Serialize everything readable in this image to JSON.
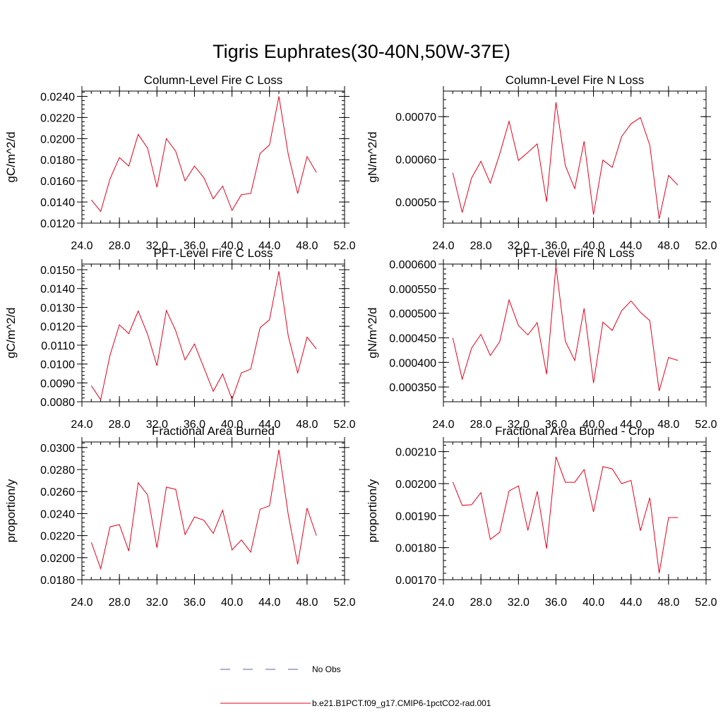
{
  "title": "Tigris Euphrates(30-40N,50W-37E)",
  "line_color": "#e8001c",
  "obs_color": "#5b5fa8",
  "legend": {
    "obs_label": "No Obs",
    "model_label": "b.e21.B1PCT.f09_g17.CMIP6-1pctCO2-rad.001"
  },
  "chart_data": [
    {
      "type": "line",
      "title": "Column-Level Fire C Loss",
      "ylabel": "gC/m^2/d",
      "xlim": [
        24,
        52
      ],
      "ylim": [
        0.012,
        0.0245
      ],
      "xticks": [
        24,
        28,
        32,
        36,
        40,
        44,
        48,
        52
      ],
      "xtick_labels": [
        "24.0",
        "28.0",
        "32.0",
        "36.0",
        "40.0",
        "44.0",
        "48.0",
        "52.0"
      ],
      "yticks": [
        0.012,
        0.014,
        0.016,
        0.018,
        0.02,
        0.022,
        0.024
      ],
      "ytick_labels": [
        "0.0120",
        "0.0140",
        "0.0160",
        "0.0180",
        "0.0200",
        "0.0220",
        "0.0240"
      ],
      "x": [
        25,
        26,
        27,
        28,
        29,
        30,
        31,
        32,
        33,
        34,
        35,
        36,
        37,
        38,
        39,
        40,
        41,
        42,
        43,
        44,
        45,
        46,
        47,
        48,
        49
      ],
      "series": [
        {
          "values": [
            0.0142,
            0.0131,
            0.0162,
            0.0182,
            0.0174,
            0.0204,
            0.0191,
            0.0154,
            0.02,
            0.0188,
            0.016,
            0.0174,
            0.0163,
            0.0143,
            0.0155,
            0.0132,
            0.0147,
            0.0148,
            0.0186,
            0.0194,
            0.024,
            0.0185,
            0.0148,
            0.0183,
            0.0168
          ]
        }
      ]
    },
    {
      "type": "line",
      "title": "Column-Level Fire N Loss",
      "ylabel": "gN/m^2/d",
      "xlim": [
        24,
        52
      ],
      "ylim": [
        0.00045,
        0.00076
      ],
      "xticks": [
        24,
        28,
        32,
        36,
        40,
        44,
        48,
        52
      ],
      "xtick_labels": [
        "24.0",
        "28.0",
        "32.0",
        "36.0",
        "40.0",
        "44.0",
        "48.0",
        "52.0"
      ],
      "yticks": [
        0.0005,
        0.0006,
        0.0007
      ],
      "ytick_labels": [
        "0.00050",
        "0.00060",
        "0.00070"
      ],
      "x": [
        25,
        26,
        27,
        28,
        29,
        30,
        31,
        32,
        33,
        34,
        35,
        36,
        37,
        38,
        39,
        40,
        41,
        42,
        43,
        44,
        45,
        46,
        47,
        48,
        49
      ],
      "series": [
        {
          "values": [
            0.000568,
            0.000475,
            0.000556,
            0.000595,
            0.000544,
            0.000612,
            0.000689,
            0.000597,
            0.000616,
            0.000636,
            0.0005,
            0.000734,
            0.000585,
            0.000531,
            0.000642,
            0.00047,
            0.000598,
            0.000581,
            0.000653,
            0.000683,
            0.000698,
            0.000633,
            0.00046,
            0.000562,
            0.000539
          ]
        }
      ]
    },
    {
      "type": "line",
      "title": "PFT-Level Fire C Loss",
      "ylabel": "gC/m^2/d",
      "xlim": [
        24,
        52
      ],
      "ylim": [
        0.008,
        0.0153
      ],
      "xticks": [
        24,
        28,
        32,
        36,
        40,
        44,
        48,
        52
      ],
      "xtick_labels": [
        "24.0",
        "28.0",
        "32.0",
        "36.0",
        "40.0",
        "44.0",
        "48.0",
        "52.0"
      ],
      "yticks": [
        0.008,
        0.009,
        0.01,
        0.011,
        0.012,
        0.013,
        0.014,
        0.015
      ],
      "ytick_labels": [
        "0.0080",
        "0.0090",
        "0.0100",
        "0.0110",
        "0.0120",
        "0.0130",
        "0.0140",
        "0.0150"
      ],
      "x": [
        25,
        26,
        27,
        28,
        29,
        30,
        31,
        32,
        33,
        34,
        35,
        36,
        37,
        38,
        39,
        40,
        41,
        42,
        43,
        44,
        45,
        46,
        47,
        48,
        49
      ],
      "series": [
        {
          "values": [
            0.00885,
            0.00811,
            0.01048,
            0.01208,
            0.01161,
            0.01281,
            0.01158,
            0.00991,
            0.01284,
            0.01176,
            0.01022,
            0.01106,
            0.00981,
            0.00855,
            0.00947,
            0.00813,
            0.00953,
            0.00973,
            0.01193,
            0.01235,
            0.01492,
            0.01148,
            0.00953,
            0.01143,
            0.0108
          ]
        }
      ]
    },
    {
      "type": "line",
      "title": "PFT-Level Fire N Loss",
      "ylabel": "gN/m^2/d",
      "xlim": [
        24,
        52
      ],
      "ylim": [
        0.00032,
        0.0006
      ],
      "xticks": [
        24,
        28,
        32,
        36,
        40,
        44,
        48,
        52
      ],
      "xtick_labels": [
        "24.0",
        "28.0",
        "32.0",
        "36.0",
        "40.0",
        "44.0",
        "48.0",
        "52.0"
      ],
      "yticks": [
        0.00035,
        0.0004,
        0.00045,
        0.0005,
        0.00055,
        0.0006
      ],
      "ytick_labels": [
        "0.000350",
        "0.000400",
        "0.000450",
        "0.000500",
        "0.000550",
        "0.000600"
      ],
      "x": [
        25,
        26,
        27,
        28,
        29,
        30,
        31,
        32,
        33,
        34,
        35,
        36,
        37,
        38,
        39,
        40,
        41,
        42,
        43,
        44,
        45,
        46,
        47,
        48,
        49
      ],
      "series": [
        {
          "values": [
            0.00045,
            0.000366,
            0.000429,
            0.000457,
            0.000414,
            0.000442,
            0.000527,
            0.000475,
            0.000456,
            0.000481,
            0.000376,
            0.000596,
            0.000443,
            0.000404,
            0.00051,
            0.000358,
            0.000482,
            0.000465,
            0.000505,
            0.000525,
            0.000502,
            0.000485,
            0.000342,
            0.00041,
            0.000404
          ]
        }
      ]
    },
    {
      "type": "line",
      "title": "Fractional Area Burned",
      "ylabel": "proportion/y",
      "xlim": [
        24,
        52
      ],
      "ylim": [
        0.018,
        0.0305
      ],
      "xticks": [
        24,
        28,
        32,
        36,
        40,
        44,
        48,
        52
      ],
      "xtick_labels": [
        "24.0",
        "28.0",
        "32.0",
        "36.0",
        "40.0",
        "44.0",
        "48.0",
        "52.0"
      ],
      "yticks": [
        0.018,
        0.02,
        0.022,
        0.024,
        0.026,
        0.028,
        0.03
      ],
      "ytick_labels": [
        "0.0180",
        "0.0200",
        "0.0220",
        "0.0240",
        "0.0260",
        "0.0280",
        "0.0300"
      ],
      "x": [
        25,
        26,
        27,
        28,
        29,
        30,
        31,
        32,
        33,
        34,
        35,
        36,
        37,
        38,
        39,
        40,
        41,
        42,
        43,
        44,
        45,
        46,
        47,
        48,
        49
      ],
      "series": [
        {
          "values": [
            0.0214,
            0.019,
            0.0228,
            0.023,
            0.0206,
            0.0268,
            0.0257,
            0.0209,
            0.0264,
            0.0262,
            0.0221,
            0.0237,
            0.0234,
            0.0222,
            0.0243,
            0.0207,
            0.0216,
            0.0205,
            0.0244,
            0.0247,
            0.0298,
            0.0239,
            0.0194,
            0.0245,
            0.022
          ]
        }
      ]
    },
    {
      "type": "line",
      "title": "Fractional Area Burned - Crop",
      "ylabel": "proportion/y",
      "xlim": [
        24,
        52
      ],
      "ylim": [
        0.0017,
        0.00213
      ],
      "xticks": [
        24,
        28,
        32,
        36,
        40,
        44,
        48,
        52
      ],
      "xtick_labels": [
        "24.0",
        "28.0",
        "32.0",
        "36.0",
        "40.0",
        "44.0",
        "48.0",
        "52.0"
      ],
      "yticks": [
        0.0017,
        0.0018,
        0.0019,
        0.002,
        0.0021
      ],
      "ytick_labels": [
        "0.00170",
        "0.00180",
        "0.00190",
        "0.00200",
        "0.00210"
      ],
      "x": [
        25,
        26,
        27,
        28,
        29,
        30,
        31,
        32,
        33,
        34,
        35,
        36,
        37,
        38,
        39,
        40,
        41,
        42,
        43,
        44,
        45,
        46,
        47,
        48,
        49
      ],
      "series": [
        {
          "values": [
            0.002005,
            0.001932,
            0.001934,
            0.001972,
            0.001826,
            0.001848,
            0.001977,
            0.001993,
            0.001854,
            0.001976,
            0.001797,
            0.002084,
            0.002004,
            0.002004,
            0.002044,
            0.001912,
            0.002053,
            0.002046,
            0.002,
            0.00201,
            0.001853,
            0.001956,
            0.00172,
            0.001894,
            0.001894
          ]
        }
      ]
    }
  ]
}
